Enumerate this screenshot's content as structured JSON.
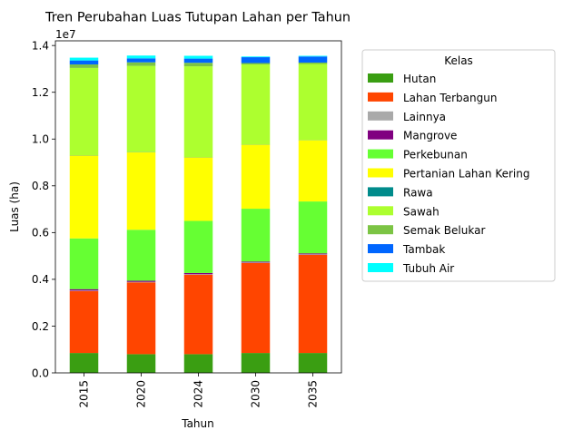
{
  "chart_data": {
    "type": "bar",
    "stacked": true,
    "title": "Tren Perubahan Luas Tutupan Lahan per Tahun",
    "xlabel": "Tahun",
    "ylabel": "Luas (ha)",
    "y_offset_label": "1e7",
    "ylim": [
      0,
      14200000
    ],
    "yticks": [
      0,
      2000000,
      4000000,
      6000000,
      8000000,
      10000000,
      12000000,
      14000000
    ],
    "ytick_labels": [
      "0.0",
      "0.2",
      "0.4",
      "0.6",
      "0.8",
      "1.0",
      "1.2",
      "1.4"
    ],
    "categories": [
      "2015",
      "2020",
      "2024",
      "2030",
      "2035"
    ],
    "grid": false,
    "legend": {
      "title": "Kelas",
      "placement": "outside-right"
    },
    "series": [
      {
        "name": "Hutan",
        "color": "#3a9e12",
        "values": [
          850000,
          800000,
          800000,
          850000,
          850000
        ]
      },
      {
        "name": "Lahan Terbangun",
        "color": "#ff4500",
        "values": [
          2650000,
          3070000,
          3400000,
          3850000,
          4200000
        ]
      },
      {
        "name": "Lainnya",
        "color": "#a9a9a9",
        "values": [
          20000,
          20000,
          20000,
          20000,
          20000
        ]
      },
      {
        "name": "Mangrove",
        "color": "#800080",
        "values": [
          60000,
          50000,
          50000,
          40000,
          40000
        ]
      },
      {
        "name": "Perkebunan",
        "color": "#66ff33",
        "values": [
          2170000,
          2180000,
          2230000,
          2260000,
          2220000
        ]
      },
      {
        "name": "Pertanian Lahan Kering",
        "color": "#ffff00",
        "values": [
          3550000,
          3320000,
          2720000,
          2740000,
          2620000
        ]
      },
      {
        "name": "Rawa",
        "color": "#008b8b",
        "values": [
          10000,
          10000,
          10000,
          10000,
          10000
        ]
      },
      {
        "name": "Sawah",
        "color": "#adff2f",
        "values": [
          3730000,
          3680000,
          3880000,
          3420000,
          3250000
        ]
      },
      {
        "name": "Semak Belukar",
        "color": "#7cc444",
        "values": [
          150000,
          150000,
          150000,
          60000,
          60000
        ]
      },
      {
        "name": "Tambak",
        "color": "#0066ff",
        "values": [
          170000,
          170000,
          180000,
          250000,
          260000
        ]
      },
      {
        "name": "Tubuh Air",
        "color": "#00ffff",
        "values": [
          120000,
          120000,
          120000,
          30000,
          30000
        ]
      }
    ]
  }
}
